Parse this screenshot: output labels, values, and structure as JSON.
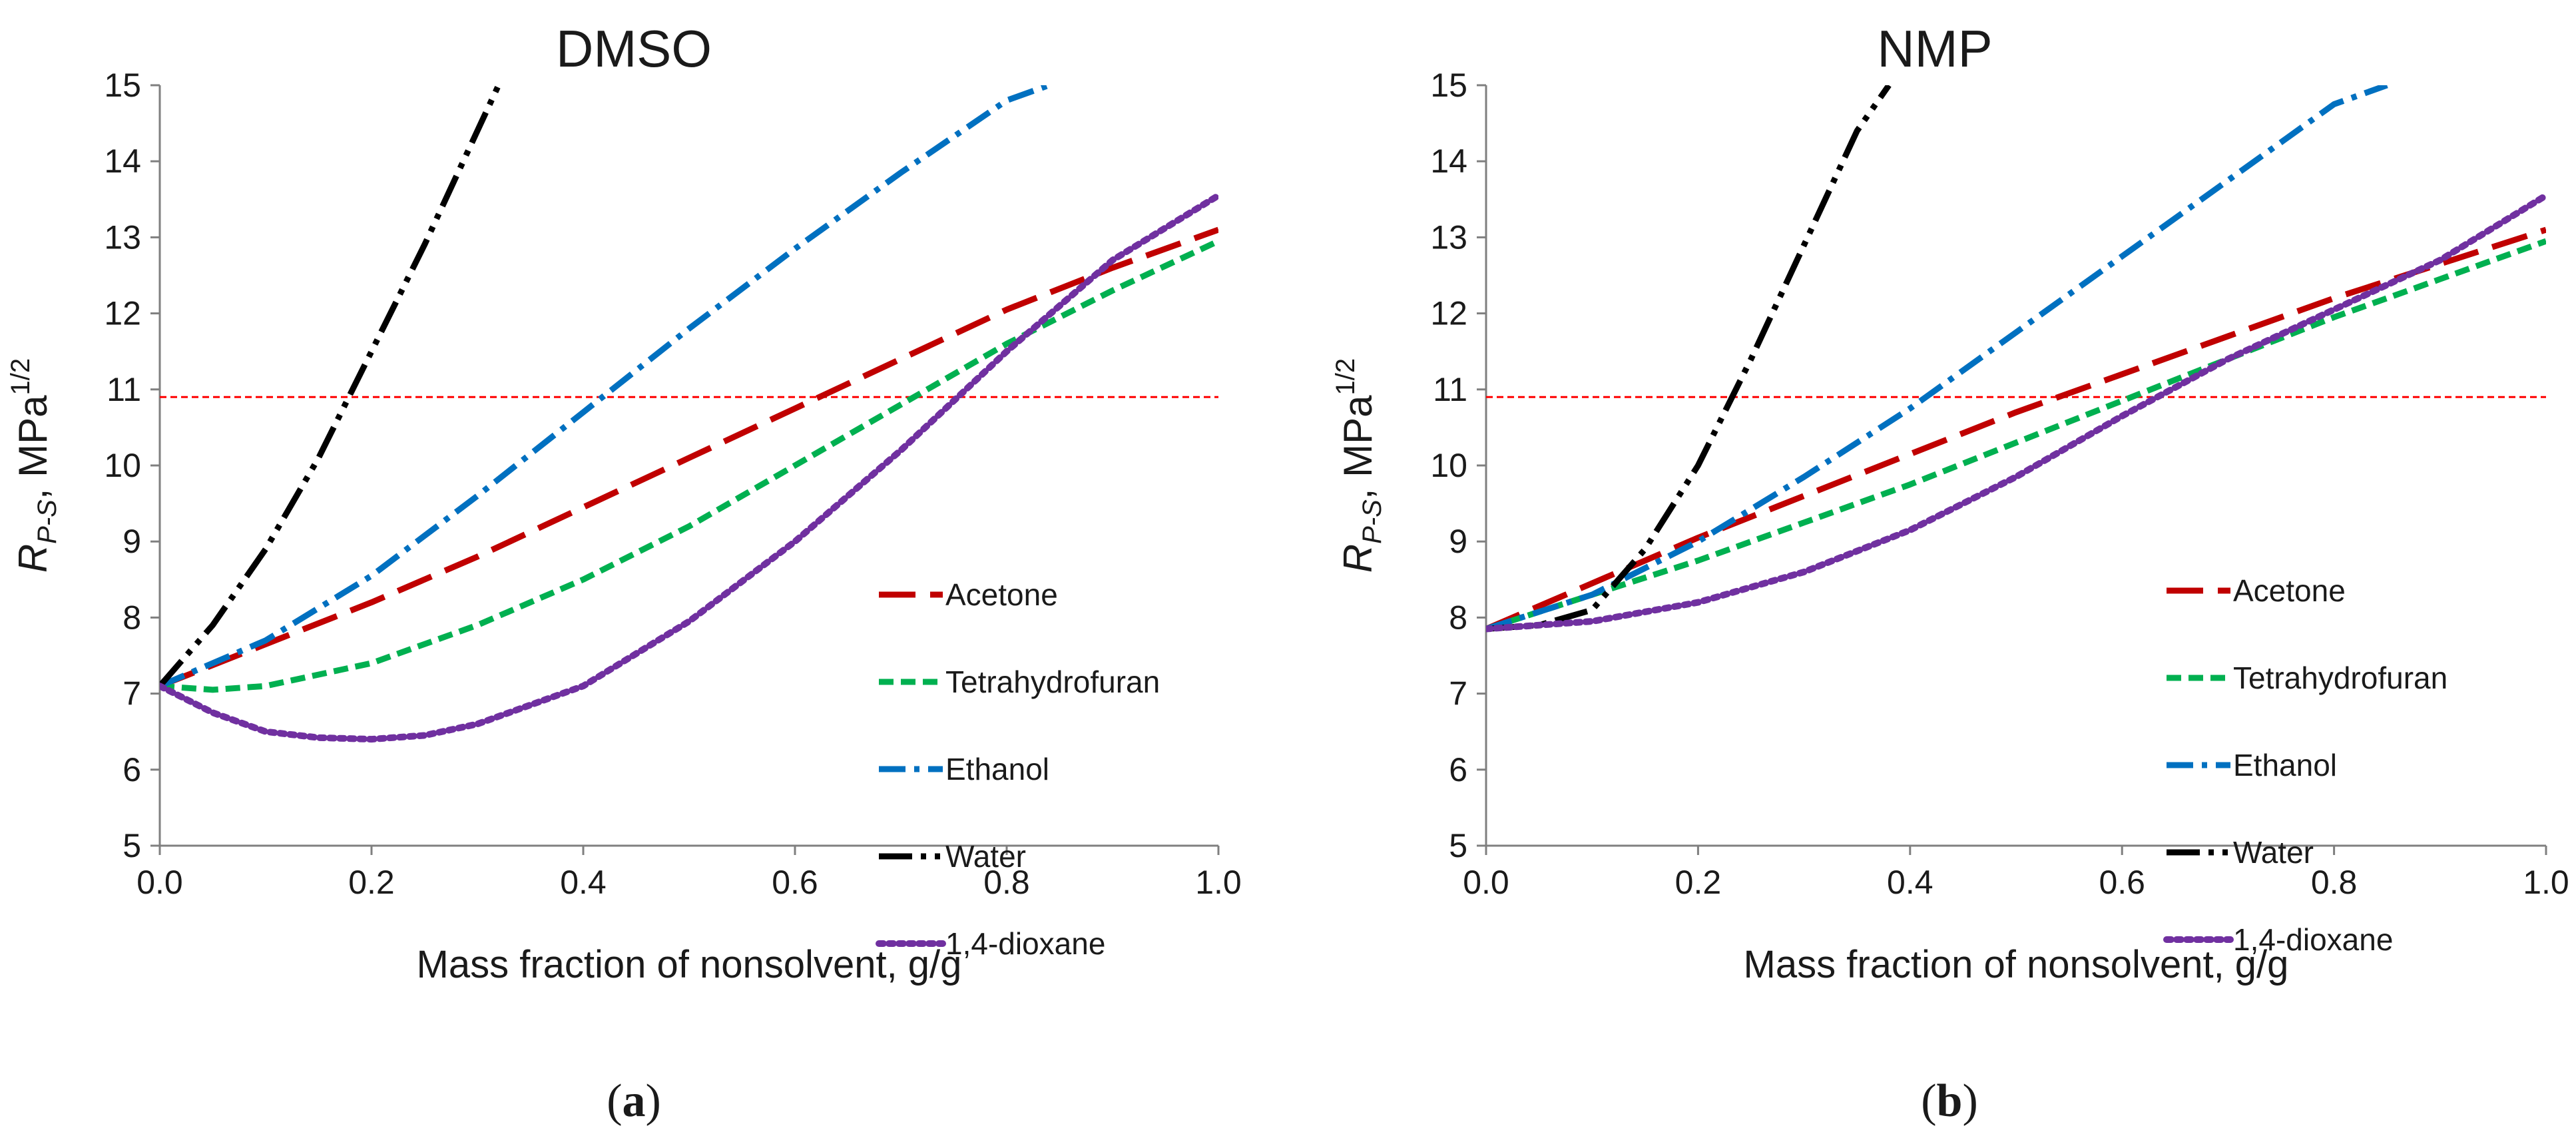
{
  "reference_line": {
    "y": 10.9,
    "color": "#ff0000"
  },
  "legend_labels": [
    "Acetone",
    "Tetrahydrofuran",
    "Ethanol",
    "Water",
    "1,4-dioxane"
  ],
  "series_styles": {
    "Acetone": {
      "color": "#c00000",
      "dash": "long-dash"
    },
    "Tetrahydrofuran": {
      "color": "#00b050",
      "dash": "short-dash"
    },
    "Ethanol": {
      "color": "#0070c0",
      "dash": "dash-dot"
    },
    "Water": {
      "color": "#000000",
      "dash": "dash-dot-dot"
    },
    "1,4-dioxane": {
      "color": "#7030a0",
      "dash": "dot"
    }
  },
  "chart_data": [
    {
      "type": "line",
      "title": "DMSO",
      "panel_label": "(a)",
      "xlabel": "Mass fraction of nonsolvent, g/g",
      "ylabel_main": "R",
      "ylabel_sub": "P-S",
      "ylabel_unit": ", MPa",
      "ylabel_sup": "1/2",
      "xlim": [
        0,
        1
      ],
      "ylim": [
        5,
        15
      ],
      "xticks": [
        "0.0",
        "0.2",
        "0.4",
        "0.6",
        "0.8",
        "1.0"
      ],
      "yticks": [
        "5",
        "6",
        "7",
        "8",
        "9",
        "10",
        "11",
        "12",
        "13",
        "14",
        "15"
      ],
      "series": [
        {
          "name": "Acetone",
          "x": [
            0,
            0.1,
            0.2,
            0.3,
            0.4,
            0.5,
            0.6,
            0.7,
            0.8,
            0.9,
            1.0
          ],
          "y": [
            7.1,
            7.65,
            8.2,
            8.8,
            9.45,
            10.1,
            10.75,
            11.4,
            12.05,
            12.6,
            13.1
          ]
        },
        {
          "name": "Tetrahydrofuran",
          "x": [
            0,
            0.05,
            0.1,
            0.2,
            0.3,
            0.4,
            0.5,
            0.6,
            0.7,
            0.8,
            0.9,
            1.0
          ],
          "y": [
            7.1,
            7.05,
            7.1,
            7.4,
            7.9,
            8.5,
            9.2,
            10.0,
            10.8,
            11.6,
            12.3,
            12.95
          ]
        },
        {
          "name": "Ethanol",
          "x": [
            0,
            0.1,
            0.2,
            0.3,
            0.4,
            0.5,
            0.6,
            0.7,
            0.8,
            0.84
          ],
          "y": [
            7.1,
            7.7,
            8.55,
            9.6,
            10.7,
            11.8,
            12.85,
            13.85,
            14.8,
            15.0
          ]
        },
        {
          "name": "Water",
          "x": [
            0,
            0.05,
            0.1,
            0.15,
            0.2,
            0.25,
            0.3,
            0.32
          ],
          "y": [
            7.1,
            7.9,
            8.9,
            10.1,
            11.5,
            12.9,
            14.4,
            15.0
          ]
        },
        {
          "name": "1,4-dioxane",
          "x": [
            0,
            0.05,
            0.1,
            0.15,
            0.2,
            0.25,
            0.3,
            0.4,
            0.5,
            0.6,
            0.7,
            0.8,
            0.9,
            1.0
          ],
          "y": [
            7.1,
            6.75,
            6.5,
            6.42,
            6.4,
            6.45,
            6.6,
            7.1,
            7.95,
            9.0,
            10.2,
            11.5,
            12.7,
            13.55
          ]
        }
      ]
    },
    {
      "type": "line",
      "title": "NMP",
      "panel_label": "(b)",
      "xlabel": "Mass fraction of nonsolvent, g/g",
      "ylabel_main": "R",
      "ylabel_sub": "P-S",
      "ylabel_unit": ", MPa",
      "ylabel_sup": "1/2",
      "xlim": [
        0,
        1
      ],
      "ylim": [
        5,
        15
      ],
      "xticks": [
        "0.0",
        "0.2",
        "0.4",
        "0.6",
        "0.8",
        "1.0"
      ],
      "yticks": [
        "5",
        "6",
        "7",
        "8",
        "9",
        "10",
        "11",
        "12",
        "13",
        "14",
        "15"
      ],
      "series": [
        {
          "name": "Acetone",
          "x": [
            0,
            0.1,
            0.2,
            0.3,
            0.4,
            0.5,
            0.6,
            0.7,
            0.8,
            0.9,
            1.0
          ],
          "y": [
            7.85,
            8.45,
            9.05,
            9.6,
            10.15,
            10.7,
            11.2,
            11.7,
            12.2,
            12.65,
            13.1
          ]
        },
        {
          "name": "Tetrahydrofuran",
          "x": [
            0,
            0.1,
            0.2,
            0.3,
            0.4,
            0.5,
            0.6,
            0.7,
            0.8,
            0.9,
            1.0
          ],
          "y": [
            7.85,
            8.3,
            8.75,
            9.25,
            9.75,
            10.3,
            10.85,
            11.4,
            11.95,
            12.45,
            12.95
          ]
        },
        {
          "name": "Ethanol",
          "x": [
            0,
            0.1,
            0.2,
            0.3,
            0.4,
            0.5,
            0.6,
            0.7,
            0.8,
            0.85
          ],
          "y": [
            7.85,
            8.3,
            9.0,
            9.85,
            10.75,
            11.75,
            12.75,
            13.75,
            14.75,
            15.0
          ]
        },
        {
          "name": "Water",
          "x": [
            0,
            0.05,
            0.1,
            0.15,
            0.2,
            0.25,
            0.3,
            0.35,
            0.38
          ],
          "y": [
            7.85,
            7.9,
            8.1,
            8.9,
            10.0,
            11.4,
            12.9,
            14.4,
            15.0
          ]
        },
        {
          "name": "1,4-dioxane",
          "x": [
            0,
            0.1,
            0.2,
            0.3,
            0.4,
            0.5,
            0.6,
            0.7,
            0.8,
            0.9,
            1.0
          ],
          "y": [
            7.85,
            7.95,
            8.2,
            8.6,
            9.15,
            9.85,
            10.65,
            11.4,
            12.05,
            12.7,
            13.55
          ]
        }
      ]
    }
  ]
}
